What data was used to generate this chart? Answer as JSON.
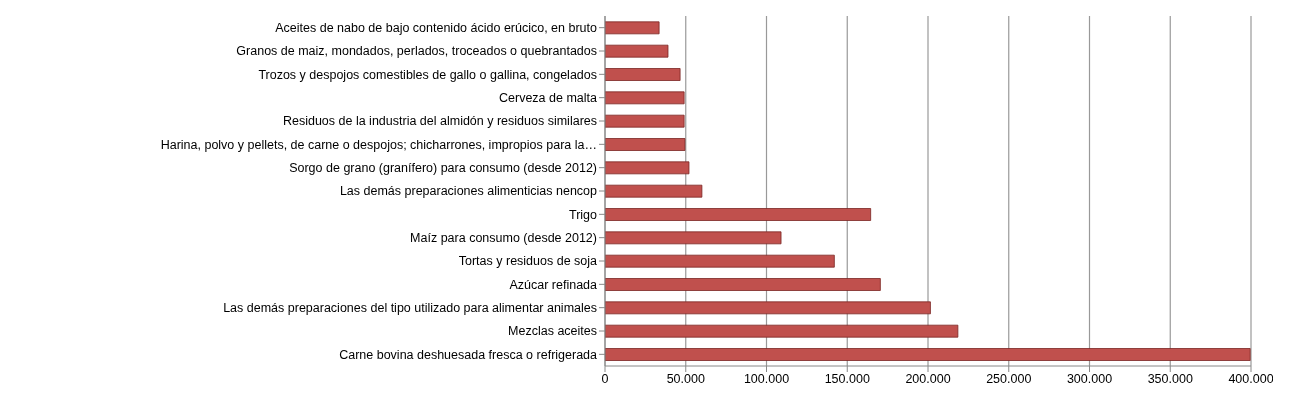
{
  "chart_data": {
    "type": "bar",
    "orientation": "horizontal",
    "categories": [
      "Aceites de nabo de bajo contenido ácido erúcico, en bruto",
      "Granos de maiz, mondados, perlados, troceados o quebrantados",
      "Trozos y despojos comestibles de gallo o gallina, congelados",
      "Cerveza de malta",
      "Residuos de la industria del almidón y residuos similares",
      "Harina, polvo y pellets, de carne o despojos; chicharrones, impropios para la…",
      "Sorgo de grano (granífero) para consumo (desde 2012)",
      "Las demás preparaciones alimenticias nencop",
      "Trigo",
      "Maíz  para consumo (desde 2012)",
      "Tortas y residuos de soja",
      "Azúcar refinada",
      "Las demás preparaciones del tipo utilizado para alimentar animales",
      "Mezclas aceites",
      "Carne bovina deshuesada fresca o refrigerada "
    ],
    "values": [
      33500,
      39000,
      46500,
      49000,
      49000,
      49500,
      52000,
      60000,
      164500,
      109000,
      142000,
      170500,
      201500,
      218500,
      399500
    ],
    "color": "#c0504d",
    "xlim": [
      0,
      400000
    ],
    "xticks": [
      {
        "value": 0,
        "label": "0"
      },
      {
        "value": 50000,
        "label": "50.000"
      },
      {
        "value": 100000,
        "label": "100.000"
      },
      {
        "value": 150000,
        "label": "150.000"
      },
      {
        "value": 200000,
        "label": "200.000"
      },
      {
        "value": 250000,
        "label": "250.000"
      },
      {
        "value": 300000,
        "label": "300.000"
      },
      {
        "value": 350000,
        "label": "350.000"
      },
      {
        "value": 400000,
        "label": "400.000"
      }
    ],
    "grid": "x"
  }
}
